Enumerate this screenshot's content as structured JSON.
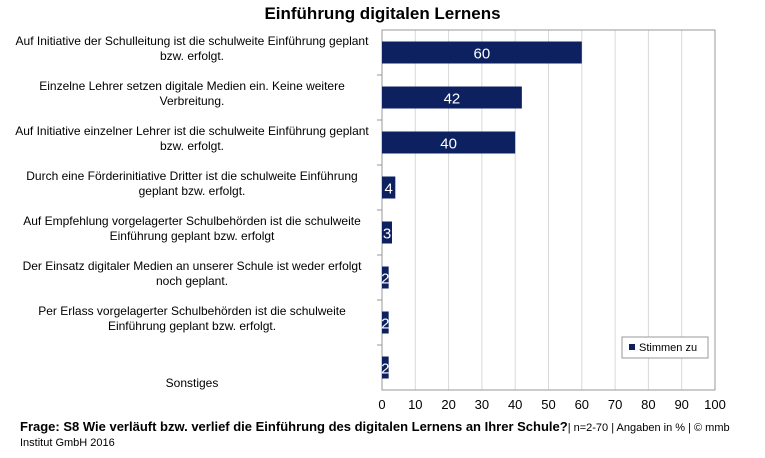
{
  "chart_data": {
    "type": "bar",
    "orientation": "horizontal",
    "title": "Einführung digitalen Lernens",
    "categories": [
      "Auf Initiative der Schulleitung ist die schulweite Einführung geplant bzw. erfolgt.",
      "Einzelne Lehrer setzen digitale Medien ein. Keine weitere Verbreitung.",
      "Auf Initiative einzelner Lehrer ist die schulweite Einführung geplant bzw. erfolgt.",
      "Durch eine Förderinitiative Dritter ist die schulweite Einführung geplant bzw. erfolgt.",
      "Auf Empfehlung vorgelagerter Schulbehörden ist die schulweite Einführung geplant bzw. erfolgt",
      "Der Einsatz digitaler Medien an unserer Schule ist weder erfolgt noch geplant.",
      "Per Erlass vorgelagerter Schulbehörden ist die schulweite Einführung geplant bzw. erfolgt.",
      "Sonstiges"
    ],
    "series": [
      {
        "name": "Stimmen zu",
        "values": [
          60,
          42,
          40,
          4,
          3,
          2,
          2,
          2
        ],
        "color": "#0d2160"
      }
    ],
    "xlim": [
      0,
      100
    ],
    "xticks": [
      "0",
      "10",
      "20",
      "30",
      "40",
      "50",
      "60",
      "70",
      "80",
      "90",
      "100"
    ],
    "grid": true,
    "legend": "bottom-right"
  },
  "footer": {
    "question": "Frage: S8 Wie verläuft bzw. verlief die Einführung des digitalen Lernens an Ihrer Schule?",
    "meta": "| n=2-70 | Angaben in % | © mmb Institut GmbH 2016"
  }
}
